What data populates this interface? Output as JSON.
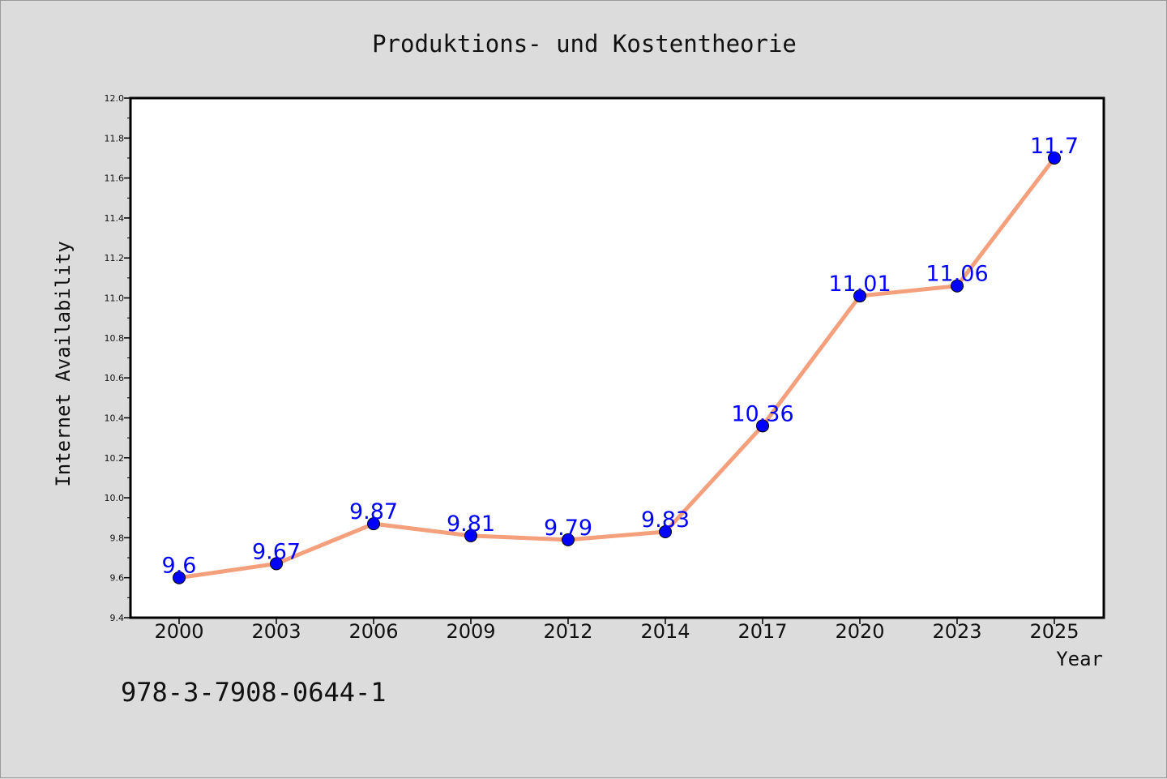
{
  "chart_data": {
    "type": "line",
    "title": "Produktions- und Kostentheorie",
    "xlabel": "Year",
    "ylabel": "Internet Availability",
    "categories": [
      "2000",
      "2003",
      "2006",
      "2009",
      "2012",
      "2014",
      "2017",
      "2020",
      "2023",
      "2025"
    ],
    "series": [
      {
        "values": [
          9.6,
          9.67,
          9.87,
          9.81,
          9.79,
          9.83,
          10.36,
          11.01,
          11.06,
          11.7
        ]
      }
    ],
    "data_labels": [
      "9.6",
      "9.67",
      "9.87",
      "9.81",
      "9.79",
      "9.83",
      "10.36",
      "11.01",
      "11.06",
      "11.7"
    ],
    "ylim": [
      9.4,
      12.0
    ],
    "yticks": [
      "9.4",
      "9.6",
      "9.8",
      "10.0",
      "10.2",
      "10.4",
      "10.6",
      "10.8",
      "11.0",
      "11.2",
      "11.4",
      "11.6",
      "11.8",
      "12.0"
    ],
    "grid": false,
    "colors": {
      "line": "#f4a07c",
      "marker": "#0000ff",
      "label": "#0000ff"
    }
  },
  "footer": {
    "isbn": "978-3-7908-0644-1"
  }
}
